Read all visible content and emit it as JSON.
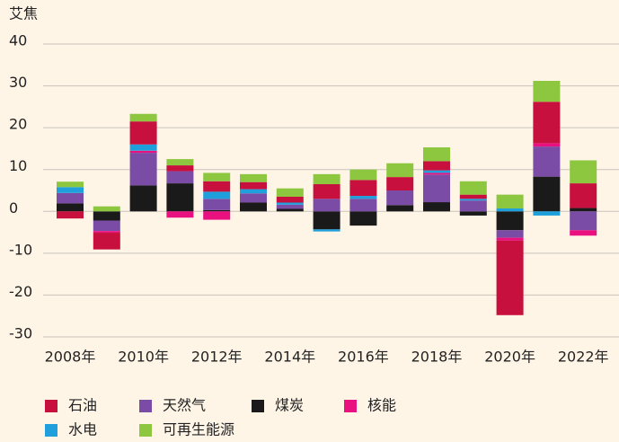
{
  "chart_data": {
    "type": "stacked_bar",
    "y_label": "艾焦",
    "categories": [
      "2008年",
      null,
      "2010年",
      null,
      "2012年",
      null,
      "2014年",
      null,
      "2016年",
      null,
      "2018年",
      null,
      "2020年",
      null,
      "2022年"
    ],
    "series": [
      {
        "name": "石油",
        "color": "#c8103e",
        "values": [
          -1.7,
          -4,
          5.5,
          1.4,
          2.5,
          1.7,
          1.4,
          3.5,
          3.8,
          3.2,
          2.2,
          1,
          -17.8,
          9.9,
          5.9
        ]
      },
      {
        "name": "天然气",
        "color": "#7b4ca5",
        "values": [
          2.5,
          -2.5,
          7.8,
          2.9,
          2.7,
          2.2,
          1.0,
          3.0,
          3.0,
          3.5,
          6.6,
          2.6,
          -1.8,
          7.2,
          -4.5
        ]
      },
      {
        "name": "煤炭",
        "color": "#1a1a1a",
        "values": [
          1.9,
          -2.2,
          6.2,
          6.7,
          0.3,
          2.1,
          0.6,
          -4.3,
          -3.4,
          1.5,
          2.2,
          -1,
          -4.5,
          8.3,
          0.8
        ]
      },
      {
        "name": "核能",
        "color": "#e8117f",
        "values": [
          0,
          -0.4,
          0.5,
          -1.5,
          -2.0,
          0,
          0,
          0,
          0,
          0,
          0.4,
          0,
          -0.7,
          0.8,
          -1.3
        ]
      },
      {
        "name": "水电",
        "color": "#1fa0dc",
        "values": [
          1.4,
          0,
          1.5,
          0,
          1.7,
          1.0,
          0.5,
          -0.5,
          0.7,
          0,
          0.6,
          0.4,
          0.7,
          -1,
          0
        ]
      },
      {
        "name": "可再生能源",
        "color": "#8dc63f",
        "values": [
          1.3,
          1.2,
          1.8,
          1.5,
          2.0,
          1.9,
          2.0,
          2.4,
          2.5,
          3.3,
          3.3,
          3.2,
          3.3,
          5.0,
          5.5
        ]
      }
    ],
    "ylim": [
      -30,
      40
    ],
    "yticks": [
      -30,
      -20,
      -10,
      0,
      10,
      20,
      30,
      40
    ],
    "grid": true,
    "legend": "bottom"
  }
}
